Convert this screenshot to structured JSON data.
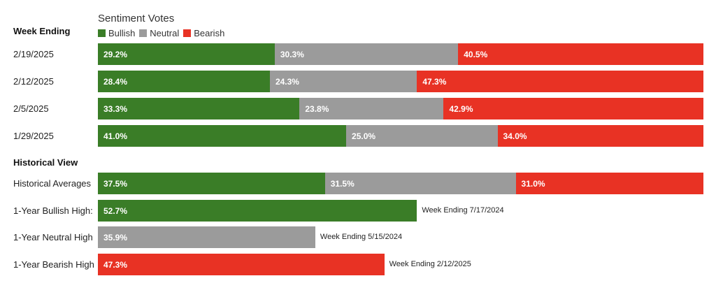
{
  "legend_title": "Sentiment Votes",
  "week_header": "Week Ending",
  "historical_header": "Historical View",
  "colors": {
    "Bullish": "#3a7d27",
    "Neutral": "#9b9b9b",
    "Bearish": "#e83224"
  },
  "legend": [
    "Bullish",
    "Neutral",
    "Bearish"
  ],
  "chart_data": {
    "type": "bar",
    "title": "Sentiment Votes",
    "stacked": true,
    "orientation": "horizontal",
    "series_names": [
      "Bullish",
      "Neutral",
      "Bearish"
    ],
    "weeks": [
      {
        "label": "2/19/2025",
        "values": [
          29.2,
          30.3,
          40.5
        ],
        "display": [
          "29.2%",
          "30.3%",
          "40.5%"
        ]
      },
      {
        "label": "2/12/2025",
        "values": [
          28.4,
          24.3,
          47.3
        ],
        "display": [
          "28.4%",
          "24.3%",
          "47.3%"
        ]
      },
      {
        "label": "2/5/2025",
        "values": [
          33.3,
          23.8,
          42.9
        ],
        "display": [
          "33.3%",
          "23.8%",
          "42.9%"
        ]
      },
      {
        "label": "1/29/2025",
        "values": [
          41.0,
          25.0,
          34.0
        ],
        "display": [
          "41.0%",
          "25.0%",
          "34.0%"
        ]
      }
    ],
    "historical_averages": {
      "label": "Historical Averages",
      "values": [
        37.5,
        31.5,
        31.0
      ],
      "display": [
        "37.5%",
        "31.5%",
        "31.0%"
      ]
    },
    "highs": [
      {
        "label": "1-Year Bullish High:",
        "series": "Bullish",
        "value": 52.7,
        "display": "52.7%",
        "note": "Week Ending 7/17/2024"
      },
      {
        "label": "1-Year Neutral High",
        "series": "Neutral",
        "value": 35.9,
        "display": "35.9%",
        "note": "Week Ending 5/15/2024"
      },
      {
        "label": "1-Year Bearish High",
        "series": "Bearish",
        "value": 47.3,
        "display": "47.3%",
        "note": "Week Ending 2/12/2025"
      }
    ]
  }
}
